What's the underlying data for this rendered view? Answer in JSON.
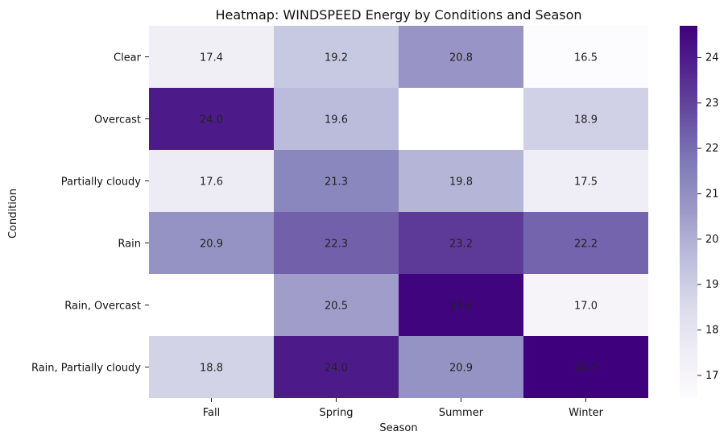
{
  "chart_data": {
    "type": "heatmap",
    "title": "Heatmap: WINDSPEED Energy by Conditions and Season",
    "xlabel": "Season",
    "ylabel": "Condition",
    "x_categories": [
      "Fall",
      "Spring",
      "Summer",
      "Winter"
    ],
    "y_categories": [
      "Clear",
      "Overcast",
      "Partially cloudy",
      "Rain",
      "Rain, Overcast",
      "Rain, Partially cloudy"
    ],
    "values": [
      [
        17.4,
        19.2,
        20.8,
        16.5
      ],
      [
        24.0,
        19.6,
        null,
        18.9
      ],
      [
        17.6,
        21.3,
        19.8,
        17.5
      ],
      [
        20.9,
        22.3,
        23.2,
        22.2
      ],
      [
        null,
        20.5,
        24.6,
        17.0
      ],
      [
        18.8,
        24.0,
        20.9,
        24.7
      ]
    ],
    "value_format": "0.1f",
    "colormap": "Purples",
    "colorbar": {
      "range": [
        16.5,
        24.7
      ],
      "ticks": [
        17,
        18,
        19,
        20,
        21,
        22,
        23,
        24
      ]
    },
    "colors": {
      "low": "#fcfbfd",
      "high": "#3f007d",
      "missing": "#ffffff",
      "text_dark": "#262626",
      "text_light": "#ffffff"
    },
    "grid": false,
    "legend": "colorbar-right"
  }
}
